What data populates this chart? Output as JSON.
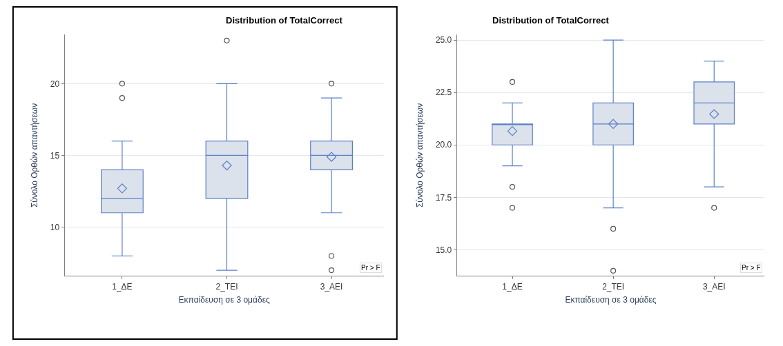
{
  "chart_data": [
    {
      "type": "box",
      "title": "Distribution of TotalCorrect",
      "xlabel": "Εκπαίδευση σε 3 ομάδες",
      "ylabel": "Σύνολο Ορθών απαντήσεων",
      "categories": [
        "1_ΔΕ",
        "2_ΤΕΙ",
        "3_ΑΕΙ"
      ],
      "ylim": [
        6.6,
        23.4
      ],
      "yticks": [
        10,
        15,
        20
      ],
      "grid": "y",
      "color": "#5b7fc7",
      "boxes": [
        {
          "low": 8,
          "q1": 11,
          "median": 12,
          "q3": 14,
          "high": 16,
          "mean": 12.7,
          "outliers": [
            19,
            20
          ]
        },
        {
          "low": 7,
          "q1": 12,
          "median": 15,
          "q3": 16,
          "high": 20,
          "mean": 14.3,
          "outliers": [
            23
          ]
        },
        {
          "low": 11,
          "q1": 14,
          "median": 15,
          "q3": 16,
          "high": 19,
          "mean": 14.9,
          "outliers": [
            20,
            8,
            7
          ]
        }
      ],
      "annotations": [
        "Pr > F"
      ]
    },
    {
      "type": "box",
      "title": "Distribution of TotalCorrect",
      "xlabel": "Εκπαίδευση σε 3 ομάδες",
      "ylabel": "Σύνολο Ορθών απαντήσεων",
      "categories": [
        "1_ΔΕ",
        "2_ΤΕΙ",
        "3_ΑΕΙ"
      ],
      "ylim": [
        13.75,
        25.25
      ],
      "yticks": [
        {
          "value": 15,
          "label": "15.0"
        },
        {
          "value": 17.5,
          "label": "17.5"
        },
        {
          "value": 20,
          "label": "20.0"
        },
        {
          "value": 22.5,
          "label": "22.5"
        },
        {
          "value": 25,
          "label": "25.0"
        }
      ],
      "grid": "y",
      "color": "#5b7fc7",
      "boxes": [
        {
          "low": 19,
          "q1": 20,
          "median": 21,
          "q3": 21,
          "high": 22,
          "mean": 20.66,
          "outliers": [
            23,
            18,
            17
          ]
        },
        {
          "low": 17,
          "q1": 20,
          "median": 21,
          "q3": 22,
          "high": 25,
          "mean": 21.0,
          "outliers": [
            16,
            14
          ]
        },
        {
          "low": 18,
          "q1": 21,
          "median": 22,
          "q3": 23,
          "high": 24,
          "mean": 21.47,
          "outliers": [
            17
          ]
        }
      ],
      "annotations": [
        "Pr > F"
      ]
    }
  ]
}
